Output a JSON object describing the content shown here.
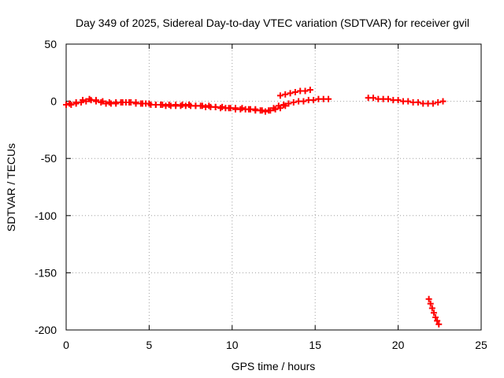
{
  "chart_data": {
    "type": "scatter",
    "title": "Day 349 of 2025, Sidereal Day-to-day VTEC variation (SDTVAR) for receiver gvil",
    "xlabel": "GPS time / hours",
    "ylabel": "SDTVAR / TECUs",
    "xlim": [
      0,
      25
    ],
    "ylim": [
      -200,
      50
    ],
    "xticks": [
      0,
      5,
      10,
      15,
      20,
      25
    ],
    "yticks": [
      -200,
      -150,
      -100,
      -50,
      0,
      50
    ],
    "grid": true,
    "marker": "+",
    "color": "#ff0000",
    "series": [
      {
        "name": "seg-main-a",
        "x": [
          0.0,
          0.3,
          0.6,
          0.9,
          1.2,
          1.5,
          1.8,
          2.1,
          2.4,
          2.7,
          3.0,
          3.3,
          3.6,
          3.9,
          4.2,
          4.5,
          4.8,
          5.1,
          5.4,
          5.7,
          6.0,
          6.3,
          6.6,
          6.9,
          7.2,
          7.5,
          7.8,
          8.1,
          8.4,
          8.7,
          9.0,
          9.3,
          9.6,
          9.9,
          10.2,
          10.5,
          10.8,
          11.1,
          11.4,
          11.7,
          12.0,
          12.3,
          12.6,
          12.9,
          13.2
        ],
        "y": [
          -3,
          -3,
          -2,
          -1,
          0,
          1,
          0,
          -1,
          -2,
          -2,
          -2,
          -1,
          -1,
          -1,
          -2,
          -2,
          -2,
          -3,
          -3,
          -3,
          -4,
          -4,
          -4,
          -4,
          -4,
          -4,
          -4,
          -4,
          -5,
          -5,
          -5,
          -6,
          -6,
          -6,
          -7,
          -7,
          -7,
          -7,
          -8,
          -8,
          -9,
          -8,
          -7,
          -6,
          -4
        ]
      },
      {
        "name": "seg-main-b",
        "x": [
          0.2,
          0.6,
          1.0,
          1.4,
          1.8,
          2.2,
          2.6,
          3.0,
          3.4,
          3.8,
          4.2,
          4.6,
          5.0,
          5.4,
          5.8,
          6.2,
          6.6,
          7.0,
          7.4,
          7.8,
          8.2,
          8.6,
          9.0,
          9.4,
          9.8,
          10.2,
          10.6,
          11.0,
          11.4,
          11.8,
          12.2
        ],
        "y": [
          -2,
          -1,
          1,
          2,
          1,
          0,
          -1,
          -1,
          -1,
          -1,
          -1,
          -2,
          -2,
          -3,
          -3,
          -3,
          -3,
          -3,
          -3,
          -4,
          -4,
          -4,
          -5,
          -5,
          -6,
          -6,
          -6,
          -7,
          -7,
          -8,
          -8
        ]
      },
      {
        "name": "seg-rise-lower",
        "x": [
          12.5,
          12.8,
          13.1,
          13.4,
          13.7,
          14.0,
          14.3,
          14.6,
          14.9,
          15.2,
          15.5,
          15.8
        ],
        "y": [
          -6,
          -4,
          -3,
          -2,
          -1,
          0,
          0,
          1,
          1,
          2,
          2,
          2
        ]
      },
      {
        "name": "seg-rise-upper",
        "x": [
          12.9,
          13.2,
          13.5,
          13.8,
          14.1,
          14.4,
          14.7
        ],
        "y": [
          5,
          6,
          7,
          8,
          9,
          9,
          10
        ]
      },
      {
        "name": "seg-evening",
        "x": [
          18.2,
          18.5,
          18.8,
          19.1,
          19.4,
          19.7,
          20.0,
          20.3,
          20.6,
          20.9,
          21.2,
          21.5,
          21.8,
          22.1,
          22.4,
          22.7
        ],
        "y": [
          3,
          3,
          2,
          2,
          2,
          1,
          1,
          0,
          0,
          -1,
          -1,
          -2,
          -2,
          -2,
          -1,
          0
        ]
      },
      {
        "name": "seg-drop",
        "x": [
          21.85,
          21.95,
          22.05,
          22.15,
          22.25,
          22.35,
          22.45
        ],
        "y": [
          -173,
          -177,
          -181,
          -185,
          -189,
          -192,
          -195
        ]
      }
    ]
  }
}
